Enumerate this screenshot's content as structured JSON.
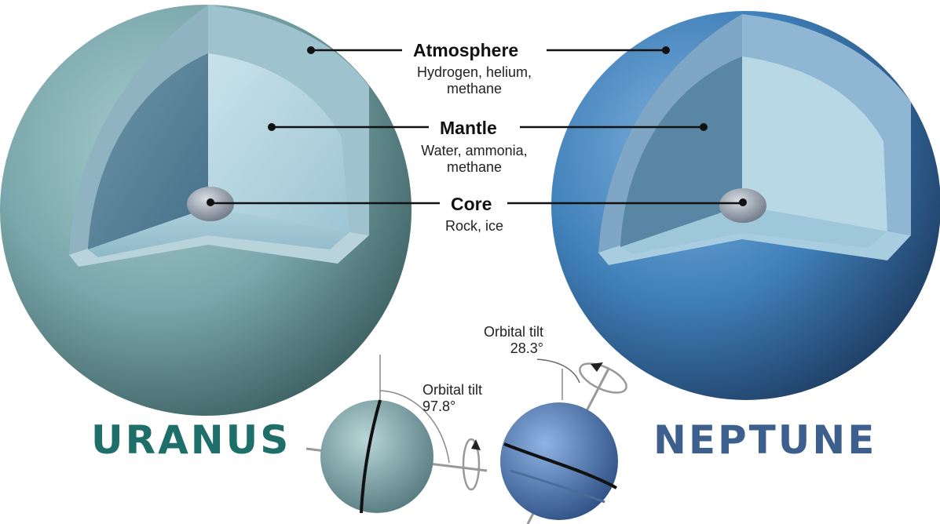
{
  "layers": [
    {
      "name": "Atmosphere",
      "composition_line1": "Hydrogen, helium,",
      "composition_line2": "methane"
    },
    {
      "name": "Mantle",
      "composition_line1": "Water, ammonia,",
      "composition_line2": "methane"
    },
    {
      "name": "Core",
      "composition_line1": "Rock, ice",
      "composition_line2": ""
    }
  ],
  "planets": [
    {
      "name": "URANUS",
      "color": "#1e6f6a",
      "tilt_label": "Orbital tilt",
      "tilt_value": "97.8°"
    },
    {
      "name": "NEPTUNE",
      "color": "#3d5f8e",
      "tilt_label": "Orbital tilt",
      "tilt_value": "28.3°"
    }
  ],
  "colors": {
    "uranus_surface": "#7aa7ab",
    "neptune_surface": "#3f7fb8",
    "mantle": "#bcd8e2",
    "core": "#9aa3ad"
  }
}
